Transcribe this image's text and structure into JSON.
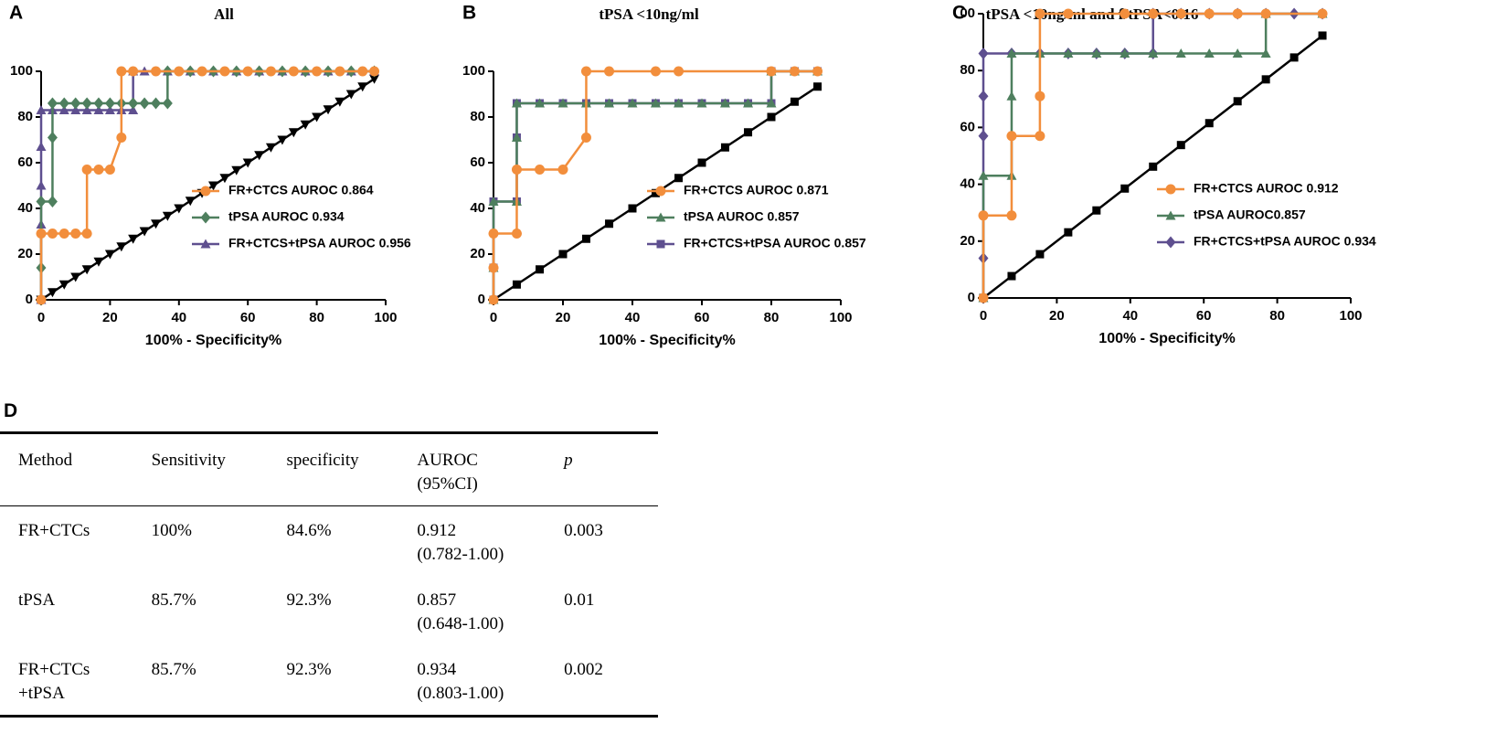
{
  "chart_data": [
    {
      "type": "line",
      "panel": "A",
      "title": "All",
      "xlabel": "100% - Specificity%",
      "xlim": [
        0,
        100
      ],
      "ylim": [
        0,
        100
      ],
      "xticks": [
        0,
        20,
        40,
        60,
        80,
        100
      ],
      "yticks": [
        0,
        20,
        40,
        60,
        80,
        100
      ],
      "legend": "lower right",
      "series": [
        {
          "name": "FR+CTCS AUROC 0.864",
          "color": "#f28e3c",
          "marker": "circle",
          "x": [
            0,
            0,
            3.3,
            6.7,
            10,
            13.3,
            13.3,
            16.7,
            20,
            23.3,
            23.3,
            26.7,
            33.3,
            40,
            46.7,
            53.3,
            60,
            66.7,
            73.3,
            80,
            86.7,
            93.3,
            96.7
          ],
          "values": [
            0,
            29,
            29,
            29,
            29,
            29,
            57,
            57,
            57,
            71,
            100,
            100,
            100,
            100,
            100,
            100,
            100,
            100,
            100,
            100,
            100,
            100,
            100
          ]
        },
        {
          "name": "tPSA AUROC 0.934",
          "color": "#4e7f5e",
          "marker": "diamond",
          "x": [
            0,
            0,
            0,
            3.3,
            3.3,
            3.3,
            6.7,
            10,
            13.3,
            16.7,
            20,
            23.3,
            26.7,
            30,
            33.3,
            36.7,
            36.7,
            43.3,
            50,
            56.7,
            63.3,
            70,
            76.7,
            83.3,
            90,
            96.7
          ],
          "values": [
            0,
            14,
            43,
            43,
            71,
            86,
            86,
            86,
            86,
            86,
            86,
            86,
            86,
            86,
            86,
            86,
            100,
            100,
            100,
            100,
            100,
            100,
            100,
            100,
            100,
            100
          ]
        },
        {
          "name": "FR+CTCS+tPSA AUROC 0.956",
          "color": "#5e4f8f",
          "marker": "triangle",
          "x": [
            0,
            0,
            0,
            0,
            0,
            3.3,
            6.7,
            10,
            13.3,
            16.7,
            20,
            23.3,
            26.7,
            26.7,
            30,
            36.7,
            43.3,
            50,
            56.7,
            63.3,
            70,
            76.7,
            83.3,
            90,
            96.7
          ],
          "values": [
            0,
            33,
            50,
            67,
            83,
            83,
            83,
            83,
            83,
            83,
            83,
            83,
            83,
            100,
            100,
            100,
            100,
            100,
            100,
            100,
            100,
            100,
            100,
            100,
            100
          ]
        },
        {
          "color": "#000000",
          "marker": "tridown",
          "x": [
            0,
            3.3,
            6.7,
            10,
            13.3,
            16.7,
            20,
            23.3,
            26.7,
            30,
            33.3,
            36.7,
            40,
            43.3,
            46.7,
            50,
            53.3,
            56.7,
            60,
            63.3,
            66.7,
            70,
            73.3,
            76.7,
            80,
            83.3,
            86.7,
            90,
            93.3,
            96.7
          ],
          "values": [
            0,
            3.3,
            6.7,
            10,
            13.3,
            16.7,
            20,
            23.3,
            26.7,
            30,
            33.3,
            36.7,
            40,
            43.3,
            46.7,
            50,
            53.3,
            56.7,
            60,
            63.3,
            66.7,
            70,
            73.3,
            76.7,
            80,
            83.3,
            86.7,
            90,
            93.3,
            96.7
          ]
        }
      ]
    },
    {
      "type": "line",
      "panel": "B",
      "title": "tPSA <10ng/ml",
      "xlabel": "100% - Specificity%",
      "xlim": [
        0,
        100
      ],
      "ylim": [
        0,
        100
      ],
      "xticks": [
        0,
        20,
        40,
        60,
        80,
        100
      ],
      "yticks": [
        0,
        20,
        40,
        60,
        80,
        100
      ],
      "legend": "lower right",
      "series": [
        {
          "name": "FR+CTCS AUROC 0.871",
          "color": "#f28e3c",
          "marker": "circle",
          "x": [
            0,
            0,
            0,
            6.7,
            6.7,
            13.3,
            20,
            26.7,
            26.7,
            33.3,
            46.7,
            53.3,
            80,
            86.7,
            93.3
          ],
          "values": [
            0,
            14,
            29,
            29,
            57,
            57,
            57,
            71,
            100,
            100,
            100,
            100,
            100,
            100,
            100
          ]
        },
        {
          "name": "tPSA AUROC 0.857",
          "color": "#4e7f5e",
          "marker": "triangle",
          "x": [
            0,
            0,
            0,
            6.7,
            6.7,
            6.7,
            13.3,
            20,
            26.7,
            33.3,
            40,
            46.7,
            53.3,
            60,
            66.7,
            73.3,
            80,
            80,
            86.7,
            93.3
          ],
          "values": [
            0,
            14,
            43,
            43,
            71,
            86,
            86,
            86,
            86,
            86,
            86,
            86,
            86,
            86,
            86,
            86,
            86,
            100,
            100,
            100
          ]
        },
        {
          "name": "FR+CTCS+tPSA AUROC 0.857",
          "color": "#5e4f8f",
          "marker": "square",
          "x": [
            0,
            0,
            0,
            6.7,
            6.7,
            6.7,
            13.3,
            20,
            26.7,
            33.3,
            40,
            46.7,
            53.3,
            60,
            66.7,
            73.3,
            80,
            80,
            86.7,
            93.3
          ],
          "values": [
            0,
            14,
            43,
            43,
            71,
            86,
            86,
            86,
            86,
            86,
            86,
            86,
            86,
            86,
            86,
            86,
            86,
            100,
            100,
            100
          ]
        },
        {
          "color": "#000000",
          "marker": "square",
          "x": [
            0,
            6.7,
            13.3,
            20,
            26.7,
            33.3,
            40,
            46.7,
            53.3,
            60,
            66.7,
            73.3,
            80,
            86.7,
            93.3
          ],
          "values": [
            0,
            6.7,
            13.3,
            20,
            26.7,
            33.3,
            40,
            46.7,
            53.3,
            60,
            66.7,
            73.3,
            80,
            86.7,
            93.3
          ]
        }
      ]
    },
    {
      "type": "line",
      "panel": "C",
      "title": "tPSA <10ng/ml and f/tPSA<0.16",
      "xlabel": "100% - Specificity%",
      "xlim": [
        0,
        100
      ],
      "ylim": [
        0,
        100
      ],
      "xticks": [
        0,
        20,
        40,
        60,
        80,
        100
      ],
      "yticks": [
        0,
        20,
        40,
        60,
        80,
        {
          "value": 100,
          "label": "00"
        }
      ],
      "legend": "lower right",
      "series": [
        {
          "name": "FR+CTCS AUROC 0.912",
          "color": "#f28e3c",
          "marker": "circle",
          "x": [
            0,
            0,
            7.7,
            7.7,
            15.4,
            15.4,
            15.4,
            23.1,
            38.5,
            46.2,
            53.8,
            61.5,
            69.2,
            76.9,
            92.3
          ],
          "values": [
            0,
            29,
            29,
            57,
            57,
            71,
            100,
            100,
            100,
            100,
            100,
            100,
            100,
            100,
            100
          ]
        },
        {
          "name": "tPSA AUROC0.857",
          "color": "#4e7f5e",
          "marker": "triangle",
          "x": [
            0,
            0,
            7.7,
            7.7,
            7.7,
            15.4,
            23.1,
            30.8,
            38.5,
            46.2,
            53.8,
            61.5,
            69.2,
            76.9,
            76.9,
            92.3
          ],
          "values": [
            0,
            43,
            43,
            71,
            86,
            86,
            86,
            86,
            86,
            86,
            86,
            86,
            86,
            86,
            100,
            100
          ]
        },
        {
          "name": "FR+CTCS+tPSA AUROC 0.934",
          "color": "#5e4f8f",
          "marker": "diamond",
          "x": [
            0,
            0,
            0,
            0,
            0,
            0,
            7.7,
            15.4,
            23.1,
            30.8,
            38.5,
            46.2,
            46.2,
            53.8,
            61.5,
            69.2,
            76.9,
            84.6,
            92.3
          ],
          "values": [
            0,
            14,
            29,
            57,
            71,
            86,
            86,
            86,
            86,
            86,
            86,
            86,
            100,
            100,
            100,
            100,
            100,
            100,
            100
          ]
        },
        {
          "color": "#000000",
          "marker": "square",
          "x": [
            0,
            7.7,
            15.4,
            23.1,
            30.8,
            38.5,
            46.2,
            53.8,
            61.5,
            69.2,
            76.9,
            84.6,
            92.3
          ],
          "values": [
            0,
            7.7,
            15.4,
            23.1,
            30.8,
            38.5,
            46.2,
            53.8,
            61.5,
            69.2,
            76.9,
            84.6,
            92.3
          ]
        }
      ]
    }
  ],
  "table": {
    "panel": "D",
    "header": [
      [
        "Method"
      ],
      [
        "Sensitivity"
      ],
      [
        "specificity"
      ],
      [
        "AUROC",
        "(95%CI)"
      ],
      [
        "p"
      ]
    ],
    "rows": [
      [
        [
          "FR+CTCs"
        ],
        [
          "100%"
        ],
        [
          "84.6%"
        ],
        [
          "0.912",
          "(0.782-1.00)"
        ],
        [
          "0.003"
        ]
      ],
      [
        [
          "tPSA"
        ],
        [
          "85.7%"
        ],
        [
          "92.3%"
        ],
        [
          "0.857",
          "(0.648-1.00)"
        ],
        [
          "0.01"
        ]
      ],
      [
        [
          "FR+CTCs",
          "+tPSA"
        ],
        [
          "85.7%"
        ],
        [
          "92.3%"
        ],
        [
          "0.934",
          "(0.803-1.00)"
        ],
        [
          "0.002"
        ]
      ]
    ]
  }
}
